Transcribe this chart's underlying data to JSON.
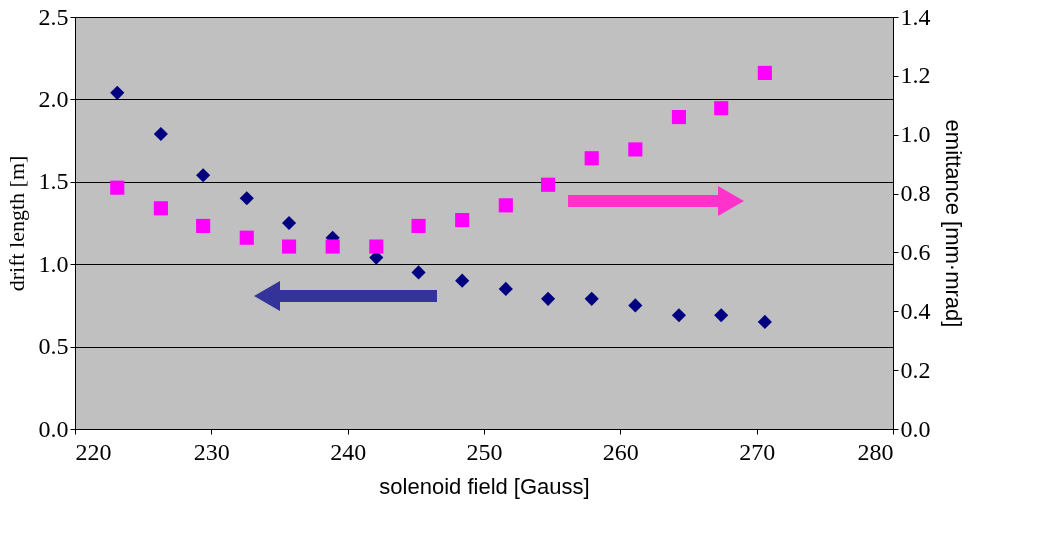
{
  "chart_data": {
    "type": "scatter",
    "xlabel": "solenoid field [Gauss]",
    "ylabel": "drift length [m]",
    "y2label": "emittance [mm·mrad]",
    "xlim": [
      220,
      280
    ],
    "xticks": [
      220,
      230,
      240,
      250,
      260,
      270,
      280
    ],
    "ylim": [
      0,
      2.5
    ],
    "yticks": [
      {
        "value": 0,
        "label": "0.0"
      },
      {
        "value": 0.5,
        "label": "0.5"
      },
      {
        "value": 1,
        "label": "1.0"
      },
      {
        "value": 1.5,
        "label": "1.5"
      },
      {
        "value": 2,
        "label": "2.0"
      },
      {
        "value": 2.5,
        "label": "2.5"
      }
    ],
    "y2lim": [
      0,
      1.4
    ],
    "y2ticks": [
      {
        "value": 0,
        "label": "0.0"
      },
      {
        "value": 0.2,
        "label": "0.2"
      },
      {
        "value": 0.4,
        "label": "0.4"
      },
      {
        "value": 0.6,
        "label": "0.6"
      },
      {
        "value": 0.8,
        "label": "0.8"
      },
      {
        "value": 1,
        "label": "1.0"
      },
      {
        "value": 1.2,
        "label": "1.2"
      },
      {
        "value": 1.4,
        "label": "1.4"
      }
    ],
    "x": [
      223.1,
      226.3,
      229.4,
      232.6,
      235.7,
      238.9,
      242.1,
      245.2,
      248.4,
      251.6,
      254.7,
      257.9,
      261.1,
      264.3,
      267.4,
      270.6
    ],
    "series": [
      {
        "color": "#000080",
        "marker": "diamond",
        "values": [
          2.04,
          1.79,
          1.54,
          1.4,
          1.25,
          1.16,
          1.04,
          0.95,
          0.9,
          0.85,
          0.79,
          0.79,
          0.75,
          0.69,
          0.69,
          0.65
        ]
      },
      {
        "color": "#ff00ff",
        "marker": "square",
        "axis": "y2",
        "values": [
          0.82,
          0.75,
          0.69,
          0.65,
          0.62,
          0.62,
          0.62,
          0.69,
          0.71,
          0.76,
          0.83,
          0.92,
          0.95,
          1.06,
          1.09,
          1.21
        ]
      }
    ],
    "grid": "y"
  }
}
